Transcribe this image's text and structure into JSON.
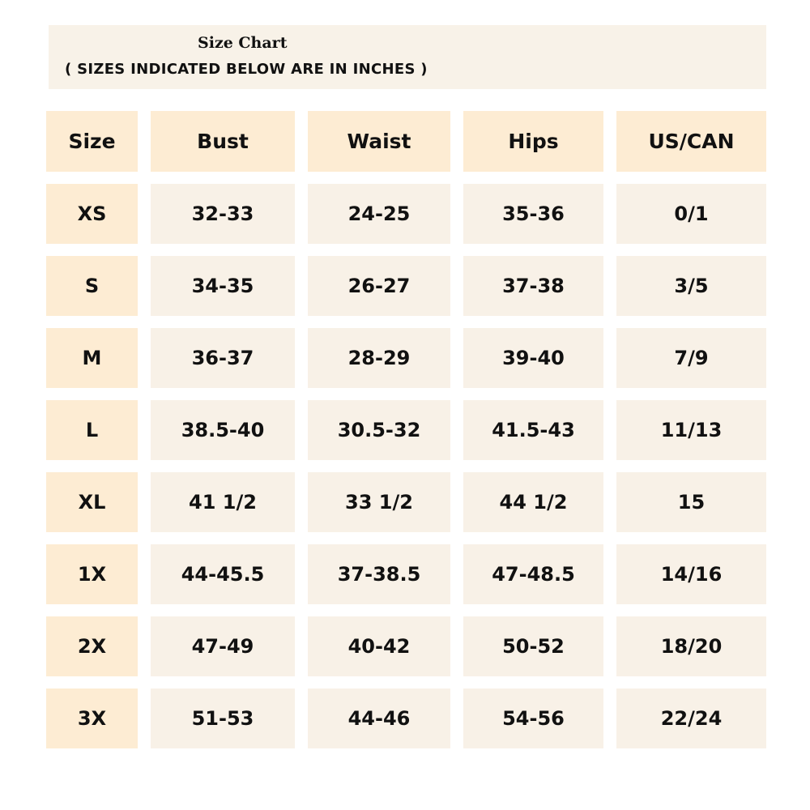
{
  "title": "Size Chart",
  "subtitle": "( SIZES INDICATED BELOW ARE IN INCHES )",
  "colors": {
    "header_bg": "#fdecd3",
    "cell_bg": "#f8f1e7",
    "title_bg": "#f8f2e8"
  },
  "table": {
    "headers": [
      "Size",
      "Bust",
      "Waist",
      "Hips",
      "US/CAN"
    ],
    "rows": [
      [
        "XS",
        "32-33",
        "24-25",
        "35-36",
        "0/1"
      ],
      [
        "S",
        "34-35",
        "26-27",
        "37-38",
        "3/5"
      ],
      [
        "M",
        "36-37",
        "28-29",
        "39-40",
        "7/9"
      ],
      [
        "L",
        "38.5-40",
        "30.5-32",
        "41.5-43",
        "11/13"
      ],
      [
        "XL",
        "41 1/2",
        "33 1/2",
        "44 1/2",
        "15"
      ],
      [
        "1X",
        "44-45.5",
        "37-38.5",
        "47-48.5",
        "14/16"
      ],
      [
        "2X",
        "47-49",
        "40-42",
        "50-52",
        "18/20"
      ],
      [
        "3X",
        "51-53",
        "44-46",
        "54-56",
        "22/24"
      ]
    ]
  }
}
